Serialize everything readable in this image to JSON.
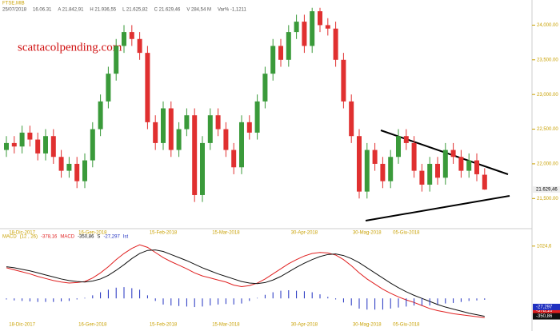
{
  "header": {
    "symbol": "FTSE.MIB",
    "items": [
      "25/07/2018",
      "16.06.31",
      "A 21.842,91",
      "H 21.936,55",
      "L 21.625,82",
      "C 21.629,46",
      "V 284,54 M",
      "Var% -1,1211"
    ]
  },
  "watermark": "scattacolpending.com",
  "chart_data": [
    {
      "type": "candlestick",
      "categories": [
        null,
        null,
        "18-Dic-2017",
        null,
        null,
        null,
        null,
        null,
        null,
        null,
        null,
        "16-Gen-2018",
        null,
        null,
        null,
        null,
        null,
        null,
        null,
        null,
        "15-Feb-2018",
        null,
        null,
        null,
        null,
        null,
        null,
        null,
        "15-Mar-2018",
        null,
        null,
        null,
        null,
        null,
        null,
        null,
        null,
        null,
        "30-Apr-2018",
        null,
        null,
        null,
        null,
        null,
        null,
        null,
        "30-Mag-2018",
        null,
        null,
        null,
        null,
        "05-Giu-2018",
        null,
        null,
        null,
        null,
        null,
        null,
        null,
        null,
        null,
        null
      ],
      "open": [
        22200,
        22300,
        22250,
        22450,
        22350,
        22150,
        22400,
        22100,
        21900,
        22000,
        21750,
        22050,
        22500,
        22900,
        23300,
        23700,
        23900,
        23800,
        23600,
        22600,
        22300,
        22800,
        22200,
        22500,
        22700,
        21550,
        22300,
        22700,
        22500,
        22200,
        21950,
        22600,
        22450,
        22900,
        23300,
        23700,
        23500,
        23900,
        24050,
        23700,
        24200,
        24000,
        23950,
        23500,
        22900,
        22400,
        21600,
        22200,
        22000,
        21750,
        22100,
        22400,
        22300,
        21900,
        21700,
        22000,
        21800,
        22200,
        22100,
        21900,
        22050,
        21842.91
      ],
      "high": [
        22400,
        22400,
        22550,
        22550,
        22450,
        22500,
        22500,
        22200,
        22100,
        22100,
        22150,
        22600,
        23000,
        23400,
        23800,
        24000,
        24000,
        23900,
        23700,
        22700,
        22900,
        22900,
        22600,
        22800,
        22800,
        22400,
        22800,
        22800,
        22600,
        22300,
        22700,
        22700,
        23000,
        23400,
        23800,
        23800,
        24000,
        24150,
        24150,
        24250,
        24250,
        24100,
        24050,
        23600,
        23000,
        22500,
        22300,
        22300,
        22100,
        22200,
        22500,
        22500,
        22400,
        22000,
        22100,
        22100,
        22300,
        22300,
        22200,
        22150,
        22150,
        21936.55
      ],
      "low": [
        22100,
        22150,
        22150,
        22250,
        22050,
        22050,
        22000,
        21800,
        21800,
        21650,
        21650,
        21950,
        22400,
        22800,
        23200,
        23600,
        23700,
        23500,
        22500,
        22200,
        22200,
        22100,
        22100,
        22400,
        21450,
        21450,
        22200,
        22400,
        22100,
        21850,
        21850,
        22350,
        22350,
        22800,
        23200,
        23400,
        23400,
        23800,
        23600,
        23600,
        23900,
        23850,
        23400,
        22800,
        22300,
        21500,
        21500,
        21900,
        21650,
        21650,
        22000,
        22200,
        21800,
        21600,
        21600,
        21700,
        21700,
        22000,
        21800,
        21800,
        21750,
        21625.82
      ],
      "close": [
        22300,
        22250,
        22450,
        22350,
        22150,
        22400,
        22100,
        21900,
        22000,
        21750,
        22050,
        22500,
        22900,
        23300,
        23700,
        23900,
        23800,
        23600,
        22600,
        22300,
        22800,
        22200,
        22500,
        22700,
        21550,
        22300,
        22700,
        22500,
        22200,
        21950,
        22600,
        22450,
        22900,
        23300,
        23700,
        23500,
        23900,
        24050,
        23700,
        24200,
        24000,
        23950,
        23500,
        22900,
        22400,
        21600,
        22200,
        22000,
        21750,
        22100,
        22400,
        22300,
        21900,
        21700,
        22000,
        21800,
        22200,
        22100,
        21900,
        22050,
        21850,
        21629.46
      ],
      "up_color": "#3a9a3a",
      "down_color": "#e03030",
      "ylim": [
        21100,
        24270
      ],
      "yticks": [
        {
          "value": 21500,
          "label": "21,500.00"
        },
        {
          "value": 22000,
          "label": "22,000.00"
        },
        {
          "value": 22500,
          "label": "22,500.00"
        },
        {
          "value": 23000,
          "label": "23,000.00"
        },
        {
          "value": 23500,
          "label": "23,500.00"
        },
        {
          "value": 24000,
          "label": "24,000.00"
        }
      ],
      "last_price": {
        "value": 21629.46,
        "label": "21.629,46"
      }
    },
    {
      "type": "macd",
      "label": "MACD",
      "params": "(12 , 26)",
      "series": [
        {
          "name": "MACD",
          "color": "#e02020",
          "label": "-378,16",
          "values": [
            600,
            560,
            520,
            480,
            430,
            390,
            350,
            320,
            300,
            310,
            330,
            400,
            500,
            620,
            760,
            880,
            980,
            1050,
            1000,
            900,
            800,
            720,
            650,
            580,
            500,
            440,
            400,
            360,
            320,
            260,
            230,
            250,
            300,
            380,
            480,
            580,
            680,
            760,
            830,
            880,
            900,
            890,
            850,
            760,
            640,
            500,
            380,
            280,
            180,
            100,
            30,
            -30,
            -80,
            -140,
            -200,
            -240,
            -270,
            -300,
            -320,
            -340,
            -360,
            -378.16
          ]
        },
        {
          "name": "S",
          "color": "#111111",
          "label": "-350,86",
          "values": [
            620,
            600,
            570,
            540,
            500,
            460,
            420,
            380,
            350,
            330,
            320,
            340,
            380,
            450,
            550,
            660,
            780,
            880,
            940,
            950,
            920,
            860,
            800,
            740,
            670,
            600,
            540,
            480,
            430,
            380,
            330,
            300,
            290,
            310,
            360,
            430,
            520,
            610,
            690,
            760,
            820,
            860,
            870,
            840,
            780,
            700,
            600,
            500,
            400,
            300,
            210,
            130,
            60,
            0,
            -60,
            -120,
            -170,
            -210,
            -250,
            -290,
            -320,
            -350.86
          ]
        },
        {
          "name": "Ist",
          "color": "#2030c0",
          "label": "-27,297",
          "values": [
            -20,
            -40,
            -50,
            -60,
            -70,
            -70,
            -70,
            -60,
            -50,
            -20,
            10,
            60,
            120,
            170,
            210,
            220,
            200,
            170,
            60,
            -50,
            -120,
            -140,
            -150,
            -160,
            -170,
            -160,
            -140,
            -120,
            -110,
            -120,
            -100,
            -50,
            10,
            70,
            120,
            150,
            160,
            150,
            140,
            120,
            80,
            30,
            -20,
            -80,
            -140,
            -200,
            -220,
            -220,
            -220,
            -200,
            -180,
            -160,
            -140,
            -140,
            -140,
            -120,
            -100,
            -90,
            -70,
            -50,
            -40,
            -27.297
          ]
        }
      ],
      "ylim": [
        -420,
        1100
      ],
      "yticks": [
        {
          "value": 1024.6,
          "label": "1024,6"
        }
      ]
    }
  ]
}
